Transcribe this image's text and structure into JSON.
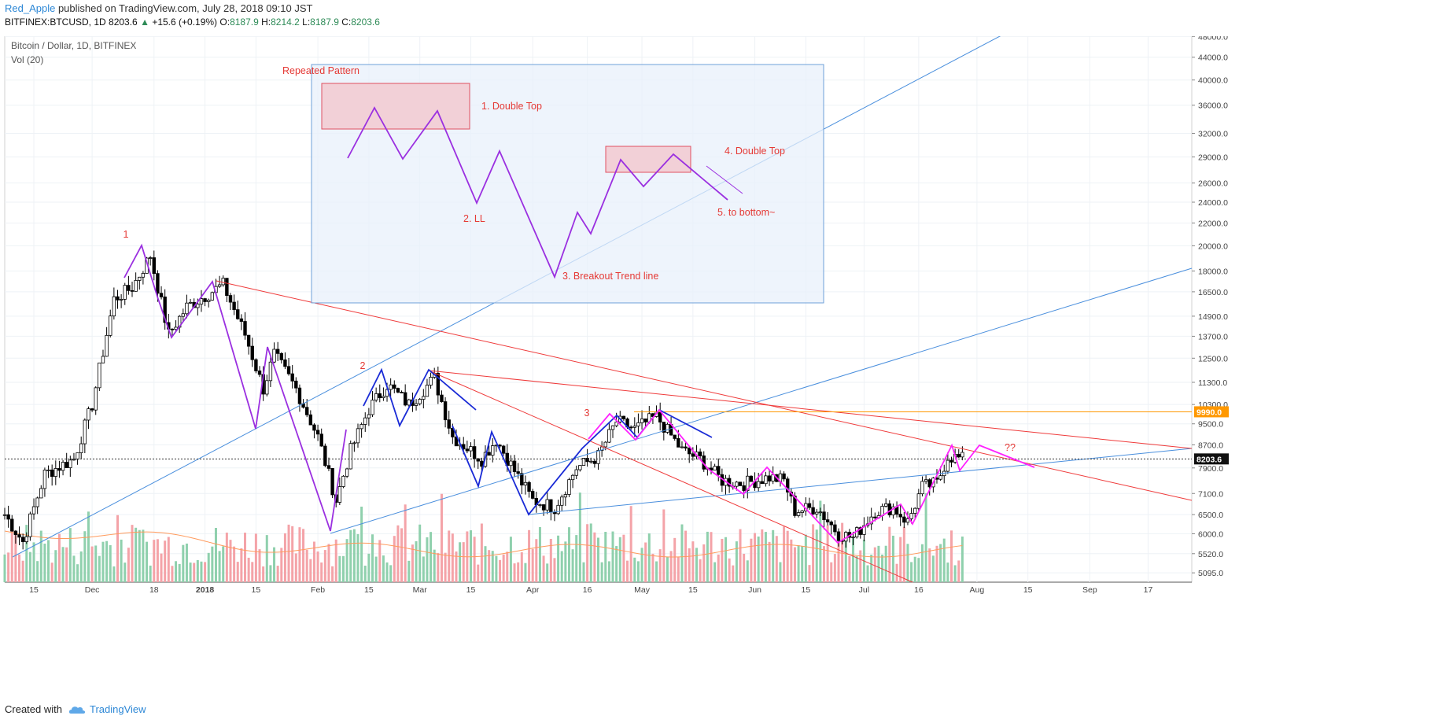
{
  "header": {
    "user": "Red_Apple",
    "published": "published on TradingView.com, July 28, 2018 09:10 JST",
    "symbol_line": "BITFINEX:BTCUSD, 1D",
    "last": "8203.6",
    "change": "+15.6 (+0.19%)",
    "o_label": "O:",
    "o": "8187.9",
    "h_label": "H:",
    "h": "8214.2",
    "l_label": "L:",
    "l": "8187.9",
    "c_label": "C:",
    "c": "8203.6"
  },
  "legend": {
    "title": "Bitcoin / Dollar, 1D, BITFINEX",
    "volume": "Vol (20)"
  },
  "footer": {
    "created_with": "Created with",
    "brand": "TradingView"
  },
  "chart_data": {
    "type": "candlestick",
    "log_scale": true,
    "y_tick_labels": [
      "48000.0",
      "44000.0",
      "40000.0",
      "36000.0",
      "32000.0",
      "29000.0",
      "26000.0",
      "24000.0",
      "22000.0",
      "20000.0",
      "18000.0",
      "16500.0",
      "14900.0",
      "13700.0",
      "12500.0",
      "11300.0",
      "10300.0",
      "9500.0",
      "8700.0",
      "7900.0",
      "7100.0",
      "6500.0",
      "6000.0",
      "5520.0",
      "5095.0"
    ],
    "x_tick_labels": [
      "15",
      "Dec",
      "18",
      "2018",
      "15",
      "Feb",
      "15",
      "Mar",
      "15",
      "Apr",
      "16",
      "May",
      "15",
      "Jun",
      "15",
      "Jul",
      "16",
      "Aug",
      "15",
      "Sep",
      "17"
    ],
    "x_range": [
      "2017-11-07",
      "2018-09-29"
    ],
    "y_range": [
      4900,
      49000
    ],
    "last_price_label": "8203.6",
    "hline_label": "9990.0",
    "hline_value": 9990,
    "close_path": [
      {
        "d": "2017-11-07",
        "v": 6500
      },
      {
        "d": "2017-11-12",
        "v": 5800
      },
      {
        "d": "2017-11-18",
        "v": 7700
      },
      {
        "d": "2017-11-26",
        "v": 8200
      },
      {
        "d": "2017-12-01",
        "v": 10300
      },
      {
        "d": "2017-12-07",
        "v": 16000
      },
      {
        "d": "2017-12-12",
        "v": 16800
      },
      {
        "d": "2017-12-17",
        "v": 19200
      },
      {
        "d": "2017-12-22",
        "v": 13800
      },
      {
        "d": "2017-12-27",
        "v": 15500
      },
      {
        "d": "2018-01-06",
        "v": 17000
      },
      {
        "d": "2018-01-12",
        "v": 13800
      },
      {
        "d": "2018-01-17",
        "v": 11000
      },
      {
        "d": "2018-01-20",
        "v": 12700
      },
      {
        "d": "2018-01-26",
        "v": 11000
      },
      {
        "d": "2018-02-01",
        "v": 9000
      },
      {
        "d": "2018-02-06",
        "v": 6900
      },
      {
        "d": "2018-02-10",
        "v": 8500
      },
      {
        "d": "2018-02-15",
        "v": 10100
      },
      {
        "d": "2018-02-20",
        "v": 11200
      },
      {
        "d": "2018-02-26",
        "v": 10300
      },
      {
        "d": "2018-03-05",
        "v": 11500
      },
      {
        "d": "2018-03-10",
        "v": 9000
      },
      {
        "d": "2018-03-18",
        "v": 8200
      },
      {
        "d": "2018-03-22",
        "v": 8900
      },
      {
        "d": "2018-03-27",
        "v": 7800
      },
      {
        "d": "2018-04-01",
        "v": 6900
      },
      {
        "d": "2018-04-07",
        "v": 6700
      },
      {
        "d": "2018-04-13",
        "v": 7900
      },
      {
        "d": "2018-04-19",
        "v": 8300
      },
      {
        "d": "2018-04-24",
        "v": 9600
      },
      {
        "d": "2018-04-29",
        "v": 9300
      },
      {
        "d": "2018-05-05",
        "v": 9800
      },
      {
        "d": "2018-05-12",
        "v": 8500
      },
      {
        "d": "2018-05-17",
        "v": 8200
      },
      {
        "d": "2018-05-23",
        "v": 7500
      },
      {
        "d": "2018-05-29",
        "v": 7400
      },
      {
        "d": "2018-06-05",
        "v": 7600
      },
      {
        "d": "2018-06-09",
        "v": 7500
      },
      {
        "d": "2018-06-12",
        "v": 6600
      },
      {
        "d": "2018-06-18",
        "v": 6700
      },
      {
        "d": "2018-06-24",
        "v": 6000
      },
      {
        "d": "2018-06-28",
        "v": 5900
      },
      {
        "d": "2018-07-04",
        "v": 6600
      },
      {
        "d": "2018-07-09",
        "v": 6700
      },
      {
        "d": "2018-07-13",
        "v": 6300
      },
      {
        "d": "2018-07-17",
        "v": 7300
      },
      {
        "d": "2018-07-21",
        "v": 7400
      },
      {
        "d": "2018-07-24",
        "v": 8300
      },
      {
        "d": "2018-07-28",
        "v": 8203
      }
    ],
    "annotations": [
      {
        "text": "1",
        "d": "2017-12-15",
        "v": 21500,
        "color": "#e53935"
      },
      {
        "text": "2",
        "d": "2018-02-14",
        "v": 12200,
        "color": "#e53935"
      },
      {
        "text": "3",
        "d": "2018-04-16",
        "v": 10100,
        "color": "#e53935"
      },
      {
        "text": "??",
        "d": "2018-08-02",
        "v": 8900,
        "color": "#e53935"
      },
      {
        "text": "Repeated Pattern",
        "box": true,
        "color": "#e53935"
      },
      {
        "text": "1. Double Top",
        "color": "#e53935"
      },
      {
        "text": "2. LL",
        "color": "#e53935"
      },
      {
        "text": "3. Breakout Trend line",
        "color": "#e53935"
      },
      {
        "text": "4. Double Top",
        "color": "#e53935"
      },
      {
        "text": "5. to bottom~",
        "color": "#e53935"
      }
    ],
    "colors": {
      "up": "#ffffff",
      "down": "#000000",
      "vol_up": "#8fd0ad",
      "vol_down": "#f4a3a8",
      "vol_ma": "#ff9a5c",
      "trend_blue": "#4a8fdd",
      "trend_red": "#ef3b3b",
      "purple": "#9b30e0",
      "magenta": "#ff22ff",
      "navy": "#1a2bd6",
      "orange": "#ff9800",
      "box_fill": "#e8f0fb",
      "box_stroke": "#6fa0d8",
      "pink_fill": "#f2d0d7",
      "pink_stroke": "#e05060"
    }
  }
}
